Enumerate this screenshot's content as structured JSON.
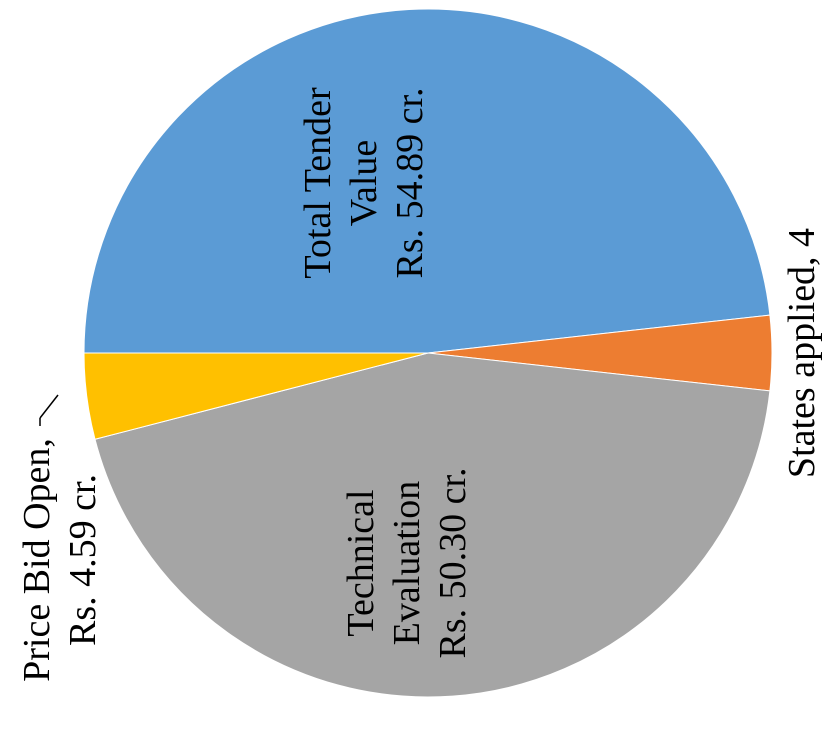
{
  "chart_data": {
    "type": "pie",
    "slices": [
      {
        "label_lines": [
          "Total Tender",
          "Value",
          "Rs.  54.89 cr."
        ],
        "value": 54.89,
        "color": "#5b9bd5"
      },
      {
        "label_lines": [
          "States applied,  4"
        ],
        "value": 4,
        "color": "#ed7d31"
      },
      {
        "label_lines": [
          "Technical",
          "Evaluation",
          "Rs.  50.30 cr."
        ],
        "value": 50.3,
        "color": "#a5a5a5"
      },
      {
        "label_lines": [
          "Price Bid Open,",
          "Rs.  4.59 cr."
        ],
        "value": 4.59,
        "color": "#ffc000"
      }
    ]
  }
}
